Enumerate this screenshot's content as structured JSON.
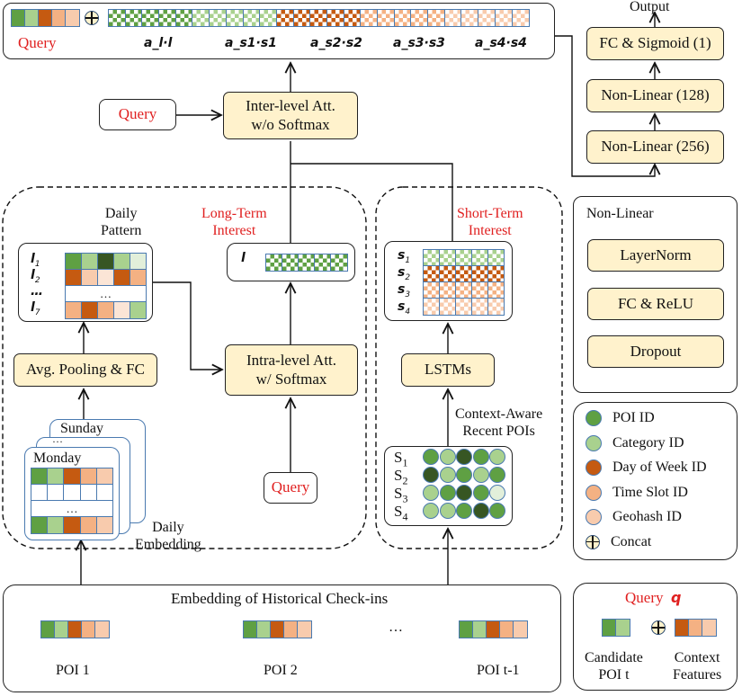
{
  "colors": {
    "poi": "#5fa043",
    "cat": "#a9d18e",
    "day": "#c55a11",
    "time": "#f4b183",
    "geo": "#f8cbad",
    "dark": "#375623",
    "pale": "#e2efda",
    "cream": "#fbe5d6",
    "box": "#fff2cc",
    "red": "#e02020"
  },
  "top": {
    "query_label": "Query",
    "query_vec": [
      "poi",
      "cat",
      "day",
      "time",
      "geo"
    ],
    "groups": [
      {
        "label": "a_l·l",
        "sym": "a",
        "sub": "l",
        "vec": "l",
        "vsub": "",
        "color": "poi"
      },
      {
        "label": "a_s1·s1",
        "sym": "a",
        "sub": "s1",
        "vec": "s",
        "vsub": "1",
        "color": "cat"
      },
      {
        "label": "a_s2·s2",
        "sym": "a",
        "sub": "s2",
        "vec": "s",
        "vsub": "2",
        "color": "day"
      },
      {
        "label": "a_s3·s3",
        "sym": "a",
        "sub": "s3",
        "vec": "s",
        "vsub": "3",
        "color": "time"
      },
      {
        "label": "a_s4·s4",
        "sym": "a",
        "sub": "s4",
        "vec": "s",
        "vsub": "4",
        "color": "geo"
      }
    ]
  },
  "inter": {
    "query": "Query",
    "box": "Inter-level Att.\nw/o Softmax"
  },
  "output": {
    "title": "Output",
    "layers": [
      "FC & Sigmoid (1)",
      "Non-Linear (128)",
      "Non-Linear (256)"
    ]
  },
  "long_term": {
    "title": "Long-Term\nInterest",
    "daily_pattern": "Daily\nPattern",
    "pattern_rows": [
      {
        "label": "l",
        "sub": "1",
        "cells": [
          "poi",
          "cat",
          "dark",
          "cat",
          "pale"
        ]
      },
      {
        "label": "l",
        "sub": "2",
        "cells": [
          "day",
          "geo",
          "cream",
          "day",
          "time"
        ]
      },
      {
        "label": "…",
        "sub": "",
        "cells": null
      },
      {
        "label": "l",
        "sub": "7",
        "cells": [
          "time",
          "day",
          "time",
          "cream",
          "cat"
        ]
      }
    ],
    "l_label": "l",
    "avg_pool": "Avg. Pooling & FC",
    "intra": "Intra-level Att.\nw/ Softmax",
    "query": "Query",
    "days": [
      "Sunday",
      "…",
      "Monday"
    ],
    "day_rows": [
      [
        "poi",
        "cat",
        "day",
        "time",
        "geo"
      ],
      [
        "w",
        "w",
        "w",
        "w",
        "w"
      ],
      null,
      [
        "poi",
        "cat",
        "day",
        "time",
        "geo"
      ]
    ],
    "ellipsis": "…",
    "daily_embedding": "Daily\nEmbedding"
  },
  "short_term": {
    "title": "Short-Term\nInterest",
    "s_rows": [
      {
        "label": "s",
        "sub": "1",
        "color": "cat"
      },
      {
        "label": "s",
        "sub": "2",
        "color": "day"
      },
      {
        "label": "s",
        "sub": "3",
        "color": "time"
      },
      {
        "label": "s",
        "sub": "4",
        "color": "geo"
      }
    ],
    "lstm": "LSTMs",
    "context": "Context-Aware\nRecent POIs",
    "S_rows": [
      {
        "label": "S",
        "sub": "1",
        "circles": [
          "poi",
          "cat",
          "dark",
          "poi",
          "cat"
        ]
      },
      {
        "label": "S",
        "sub": "2",
        "circles": [
          "dark",
          "cat",
          "poi",
          "cat",
          "poi"
        ]
      },
      {
        "label": "S",
        "sub": "3",
        "circles": [
          "cat",
          "poi",
          "dark",
          "poi",
          "pale"
        ]
      },
      {
        "label": "S",
        "sub": "4",
        "circles": [
          "cat",
          "cat",
          "poi",
          "dark",
          "poi"
        ]
      }
    ]
  },
  "nonlinear": {
    "title": "Non-Linear",
    "layers": [
      "LayerNorm",
      "FC & ReLU",
      "Dropout"
    ]
  },
  "legend": [
    {
      "color": "poi",
      "label": "POI ID"
    },
    {
      "color": "cat",
      "label": "Category ID"
    },
    {
      "color": "day",
      "label": "Day of Week ID"
    },
    {
      "color": "time",
      "label": "Time Slot ID"
    },
    {
      "color": "geo",
      "label": "Geohash ID"
    },
    {
      "color": "concat",
      "label": "Concat"
    }
  ],
  "query_legend": {
    "title": "Query",
    "symbol": "q",
    "candidate": "Candidate\nPOI t",
    "context": "Context\nFeatures",
    "cand_vec": [
      "poi",
      "cat"
    ],
    "ctx_vec": [
      "day",
      "time",
      "geo"
    ]
  },
  "embedding": {
    "title": "Embedding of Historical Check-ins",
    "pois": [
      {
        "label": "POI 1"
      },
      {
        "label": "POI 2"
      },
      {
        "label": "POI t-1"
      }
    ],
    "vec": [
      "poi",
      "cat",
      "day",
      "time",
      "geo"
    ],
    "ellipsis": "…"
  }
}
